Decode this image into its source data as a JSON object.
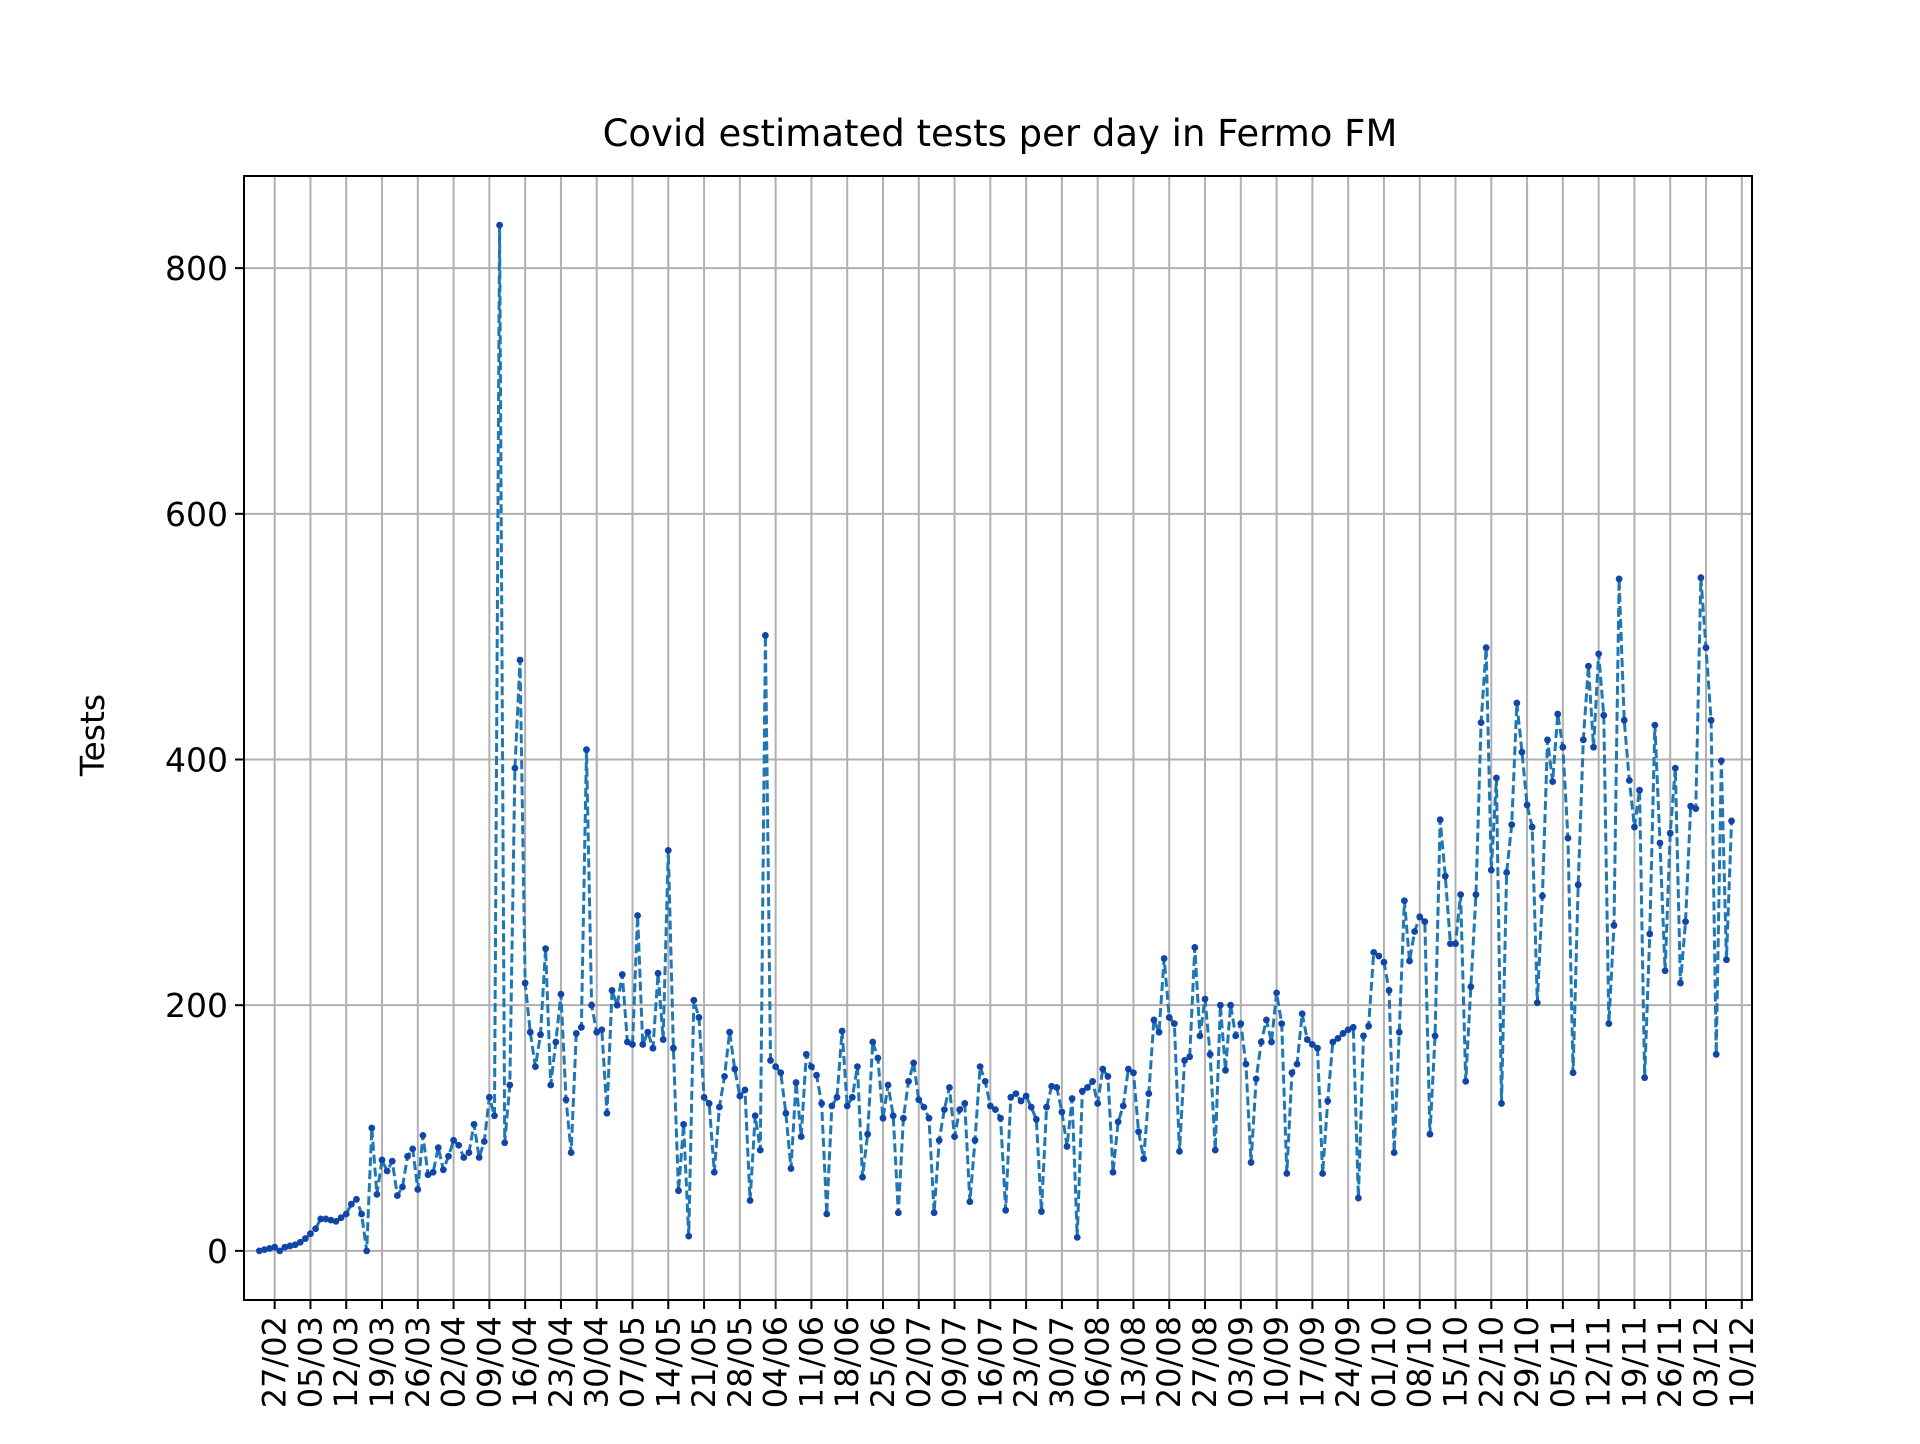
{
  "chart_data": {
    "type": "line",
    "title": "Covid estimated tests per day in Fermo FM",
    "xlabel": "",
    "ylabel": "Tests",
    "start_date": "2020-02-24",
    "x_tick_labels": [
      "27/02",
      "05/03",
      "12/03",
      "19/03",
      "26/03",
      "02/04",
      "09/04",
      "16/04",
      "23/04",
      "30/04",
      "07/05",
      "14/05",
      "21/05",
      "28/05",
      "04/06",
      "11/06",
      "18/06",
      "25/06",
      "02/07",
      "09/07",
      "16/07",
      "23/07",
      "30/07",
      "06/08",
      "13/08",
      "20/08",
      "27/08",
      "03/09",
      "10/09",
      "17/09",
      "24/09",
      "01/10",
      "08/10",
      "15/10",
      "22/10",
      "29/10",
      "05/11",
      "12/11",
      "19/11",
      "26/11",
      "03/12",
      "10/12"
    ],
    "ylim": [
      -40,
      875
    ],
    "y_ticks": [
      0,
      200,
      400,
      600,
      800
    ],
    "grid": true,
    "line_style": "dashed",
    "colors": {
      "line": "#1f77b4",
      "marker": "#1245a8",
      "grid": "#b0b0b0",
      "axes": "#000000"
    },
    "series": [
      {
        "name": "",
        "values": [
          0,
          1,
          2,
          3,
          0,
          3,
          4,
          5,
          7,
          10,
          14,
          18,
          26,
          26,
          25,
          24,
          27,
          30,
          38,
          42,
          30,
          0,
          100,
          46,
          74,
          65,
          73,
          45,
          52,
          77,
          83,
          50,
          94,
          62,
          64,
          84,
          66,
          77,
          90,
          86,
          76,
          80,
          103,
          76,
          89,
          125,
          110,
          835,
          88,
          135,
          393,
          481,
          218,
          178,
          150,
          176,
          246,
          135,
          170,
          209,
          123,
          80,
          177,
          182,
          408,
          200,
          178,
          180,
          112,
          212,
          200,
          225,
          170,
          168,
          273,
          168,
          178,
          165,
          226,
          172,
          326,
          165,
          49,
          103,
          12,
          204,
          190,
          125,
          120,
          64,
          117,
          142,
          178,
          148,
          126,
          131,
          41,
          110,
          82,
          501,
          155,
          150,
          145,
          112,
          67,
          137,
          93,
          160,
          150,
          143,
          120,
          30,
          118,
          125,
          179,
          118,
          125,
          150,
          60,
          95,
          170,
          157,
          108,
          135,
          110,
          31,
          108,
          138,
          153,
          123,
          117,
          108,
          31,
          90,
          115,
          133,
          93,
          115,
          120,
          40,
          90,
          150,
          138,
          118,
          115,
          108,
          33,
          125,
          128,
          122,
          126,
          117,
          107,
          32,
          117,
          134,
          133,
          113,
          85,
          124,
          11,
          130,
          133,
          138,
          120,
          148,
          142,
          64,
          105,
          118,
          148,
          145,
          97,
          75,
          128,
          188,
          178,
          238,
          190,
          185,
          81,
          155,
          158,
          247,
          175,
          205,
          160,
          82,
          200,
          147,
          200,
          175,
          185,
          152,
          72,
          140,
          170,
          188,
          170,
          210,
          185,
          63,
          145,
          152,
          193,
          172,
          168,
          165,
          63,
          122,
          170,
          173,
          177,
          180,
          182,
          43,
          175,
          183,
          243,
          240,
          235,
          212,
          80,
          178,
          285,
          236,
          260,
          272,
          268,
          95,
          175,
          351,
          305,
          250,
          250,
          290,
          138,
          215,
          290,
          430,
          491,
          310,
          385,
          120,
          308,
          347,
          446,
          406,
          363,
          345,
          202,
          289,
          416,
          382,
          437,
          410,
          336,
          145,
          298,
          416,
          476,
          410,
          486,
          436,
          185,
          265,
          547,
          432,
          383,
          345,
          375,
          141,
          258,
          428,
          332,
          228,
          340,
          393,
          218,
          268,
          362,
          360,
          548,
          491,
          432,
          160,
          399,
          237,
          350
        ]
      }
    ]
  }
}
